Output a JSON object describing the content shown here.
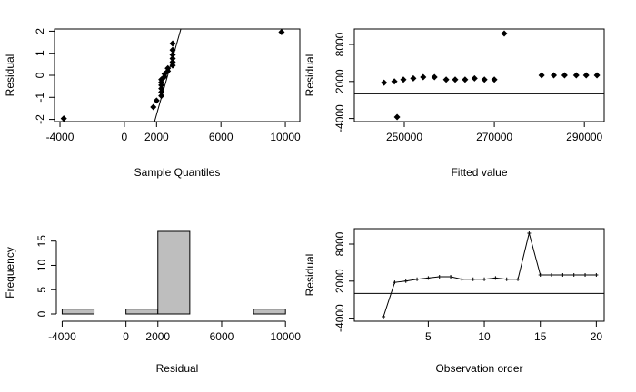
{
  "chart_data": [
    {
      "type": "scatter",
      "x_label": "Sample Quantiles",
      "y_label": "Residual",
      "color": "#000000",
      "x": [
        -3765,
        1800,
        2000,
        2300,
        2300,
        2300,
        2300,
        2300,
        2300,
        2500,
        2500,
        2700,
        2700,
        3000,
        3000,
        3000,
        3000,
        3000,
        3000,
        9765
      ],
      "values": [
        -1.96,
        -1.44,
        -1.15,
        -0.93,
        -0.76,
        -0.6,
        -0.45,
        -0.32,
        -0.19,
        -0.06,
        0.06,
        0.19,
        0.32,
        0.45,
        0.6,
        0.76,
        0.93,
        1.15,
        1.44,
        1.96
      ],
      "line": {
        "x": [
          1875,
          3510
        ],
        "values": [
          -2.1,
          2.1
        ]
      },
      "xlim": [
        -4340,
        10900
      ],
      "xticks": [
        -4000,
        0,
        2000,
        6000,
        10000
      ],
      "ylim": [
        -2.1,
        2.1
      ],
      "yticks": [
        -2,
        -1,
        0,
        1,
        2
      ]
    },
    {
      "type": "scatter",
      "x_label": "Fitted value",
      "y_label": "Residual",
      "color": "#000000",
      "x": [
        245500,
        247800,
        248400,
        249800,
        252000,
        254200,
        256700,
        259300,
        261300,
        263500,
        265600,
        267800,
        270000,
        272200,
        280500,
        283200,
        285600,
        288200,
        290400,
        292800
      ],
      "values": [
        1800,
        2000,
        -3765,
        2300,
        2500,
        2700,
        2700,
        2300,
        2300,
        2300,
        2500,
        2300,
        2300,
        9765,
        3000,
        3000,
        3000,
        3000,
        3000,
        3000
      ],
      "hline": 0,
      "xlim": [
        238900,
        294400
      ],
      "xticks": [
        250000,
        270000,
        290000
      ],
      "ylim": [
        -4500,
        10500
      ],
      "yticks": [
        -4000,
        2000,
        8000
      ]
    },
    {
      "type": "histogram",
      "x_label": "Residual",
      "y_label": "Frequency",
      "color": "#bebebe",
      "bins": [
        -4000,
        -2000,
        0,
        2000,
        4000,
        6000,
        8000,
        10000
      ],
      "values": [
        1,
        0,
        1,
        17,
        0,
        0,
        1
      ],
      "xlim": [
        -4480,
        10900
      ],
      "xticks": [
        -4000,
        0,
        2000,
        6000,
        10000
      ],
      "ylim": [
        0,
        17
      ],
      "yticks": [
        0,
        5,
        10,
        15
      ]
    },
    {
      "type": "line",
      "x_label": "Observation order",
      "y_label": "Residual",
      "color": "#000000",
      "x": [
        1,
        2,
        3,
        4,
        5,
        6,
        7,
        8,
        9,
        10,
        11,
        12,
        13,
        14,
        15,
        16,
        17,
        18,
        19,
        20
      ],
      "values": [
        -3765,
        1800,
        2000,
        2300,
        2500,
        2700,
        2700,
        2300,
        2300,
        2300,
        2500,
        2300,
        2300,
        9765,
        3000,
        3000,
        3000,
        3000,
        3000,
        3000
      ],
      "hline": 0,
      "xlim": [
        -1.6,
        20.7
      ],
      "xticks": [
        5,
        10,
        15,
        20
      ],
      "ylim": [
        -4500,
        10500
      ],
      "yticks": [
        -4000,
        2000,
        8000
      ]
    }
  ]
}
